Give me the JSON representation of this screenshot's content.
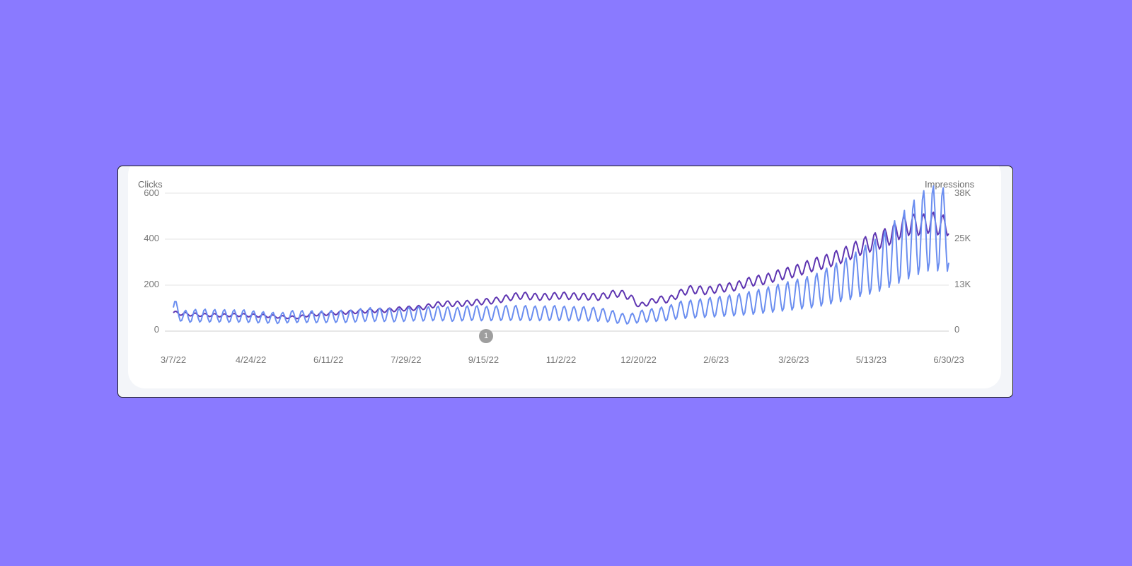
{
  "colors": {
    "background": "#8a7aff",
    "clicks": "#5e35b1",
    "impressions": "#6b8ef0",
    "grid": "#e6e6e6",
    "annotation": "#9e9e9e"
  },
  "chart_data": {
    "type": "line",
    "y_left_label": "Clicks",
    "y_right_label": "Impressions",
    "y_left_ticks": [
      "600",
      "400",
      "200",
      "0"
    ],
    "y_right_ticks": [
      "38K",
      "25K",
      "13K",
      "0"
    ],
    "ylim_left": [
      0,
      600
    ],
    "ylim_right": [
      0,
      38000
    ],
    "x_ticks": [
      "3/7/22",
      "4/24/22",
      "6/11/22",
      "7/29/22",
      "9/15/22",
      "11/2/22",
      "12/20/22",
      "2/6/23",
      "3/26/23",
      "5/13/23",
      "6/30/23"
    ],
    "x_range": [
      "3/7/22",
      "6/30/23"
    ],
    "grid": true,
    "annotation": {
      "label": "1",
      "date": "9/18/22"
    },
    "series": [
      {
        "name": "Clicks",
        "axis": "left",
        "weekly": [
          80,
          75,
          72,
          70,
          70,
          68,
          70,
          70,
          68,
          67,
          65,
          62,
          60,
          60,
          72,
          74,
          76,
          80,
          82,
          85,
          88,
          90,
          90,
          95,
          98,
          100,
          105,
          115,
          120,
          118,
          120,
          125,
          128,
          132,
          140,
          150,
          155,
          150,
          148,
          152,
          155,
          152,
          150,
          150,
          148,
          160,
          165,
          150,
          110,
          125,
          140,
          135,
          160,
          180,
          180,
          175,
          185,
          190,
          195,
          210,
          220,
          225,
          240,
          250,
          260,
          275,
          290,
          300,
          315,
          330,
          350,
          370,
          385,
          400,
          420,
          450,
          465,
          460,
          475,
          460
        ]
      },
      {
        "name": "Impressions",
        "axis": "right",
        "weekly": [
          6500,
          4000,
          4200,
          4300,
          4200,
          4200,
          4100,
          4200,
          4000,
          3800,
          3700,
          3500,
          4000,
          4000,
          4000,
          3900,
          4000,
          4100,
          4000,
          4300,
          4600,
          4500,
          4500,
          4300,
          4600,
          4800,
          4700,
          4900,
          4800,
          4500,
          4900,
          5000,
          4800,
          4900,
          5000,
          5000,
          5000,
          4900,
          4900,
          5000,
          4900,
          4800,
          4800,
          4700,
          4500,
          4200,
          3500,
          3300,
          4000,
          4300,
          4600,
          4900,
          5800,
          6000,
          6200,
          6500,
          6700,
          7000,
          7200,
          7600,
          8000,
          8500,
          9000,
          9500,
          10000,
          10500,
          11000,
          12000,
          13000,
          14000,
          15000,
          16500,
          17500,
          19000,
          21000,
          23000,
          25000,
          27000,
          28500,
          28000
        ]
      }
    ]
  }
}
